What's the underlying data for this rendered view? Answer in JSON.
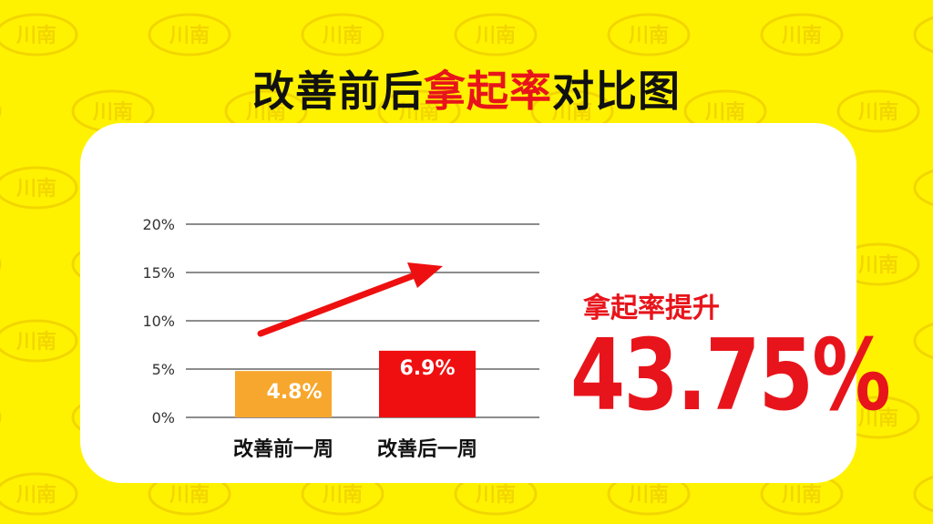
{
  "title": {
    "part1": "改善前后",
    "highlight": "拿起率",
    "part2": "对比图"
  },
  "watermark_text": "川南",
  "colors": {
    "background": "#fff200",
    "accent": "#e8141b",
    "bar_before": "#f7a72d",
    "bar_after": "#f00f10",
    "arrow": "#ee1010"
  },
  "kpi": {
    "label": "拿起率提升",
    "value": "43.75%"
  },
  "chart_data": {
    "type": "bar",
    "categories": [
      "改善前一周",
      "改善后一周"
    ],
    "values": [
      4.8,
      6.9
    ],
    "value_labels": [
      "4.8%",
      "6.9%"
    ],
    "ylim": [
      0,
      20
    ],
    "yticks": [
      0,
      5,
      10,
      15,
      20
    ],
    "ytick_labels": [
      "0%",
      "5%",
      "10%",
      "15%",
      "20%"
    ],
    "grid": true,
    "trend_arrow": "up"
  }
}
